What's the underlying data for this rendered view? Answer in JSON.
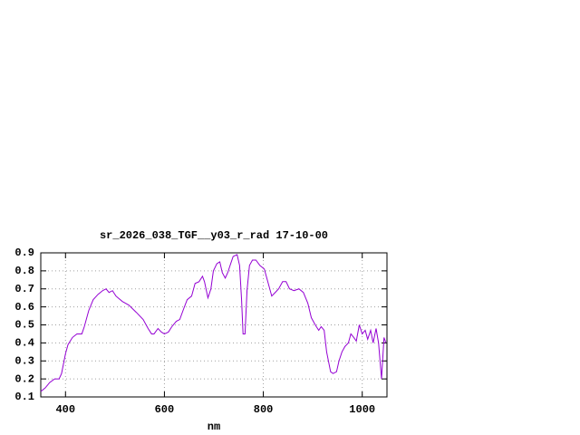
{
  "chart_data": {
    "type": "line",
    "title": "sr_2026_038_TGF__y03_r_rad 17-10-00",
    "x_label": "nm",
    "x": [
      350,
      359,
      368,
      378,
      387,
      392,
      400,
      405,
      414,
      423,
      433,
      438,
      447,
      456,
      466,
      475,
      482,
      488,
      495,
      502,
      515,
      528,
      543,
      557,
      567,
      574,
      579,
      587,
      594,
      600,
      608,
      615,
      624,
      631,
      639,
      646,
      655,
      662,
      670,
      677,
      681,
      688,
      694,
      699,
      706,
      712,
      717,
      723,
      728,
      734,
      739,
      747,
      752,
      756,
      759,
      763,
      767,
      772,
      778,
      785,
      793,
      802,
      809,
      817,
      824,
      831,
      839,
      846,
      853,
      862,
      872,
      881,
      890,
      897,
      905,
      912,
      917,
      923,
      928,
      936,
      941,
      948,
      953,
      959,
      965,
      972,
      977,
      983,
      988,
      994,
      1000,
      1006,
      1011,
      1017,
      1022,
      1028,
      1033,
      1039,
      1044,
      1048
    ],
    "series": [
      {
        "color": "#9400d3",
        "values": [
          0.13,
          0.15,
          0.18,
          0.2,
          0.2,
          0.23,
          0.34,
          0.39,
          0.43,
          0.45,
          0.45,
          0.49,
          0.58,
          0.64,
          0.67,
          0.69,
          0.7,
          0.68,
          0.69,
          0.66,
          0.63,
          0.61,
          0.57,
          0.53,
          0.48,
          0.45,
          0.45,
          0.48,
          0.46,
          0.45,
          0.46,
          0.49,
          0.52,
          0.53,
          0.59,
          0.64,
          0.66,
          0.73,
          0.74,
          0.77,
          0.74,
          0.65,
          0.7,
          0.8,
          0.84,
          0.85,
          0.79,
          0.76,
          0.79,
          0.84,
          0.88,
          0.89,
          0.83,
          0.64,
          0.45,
          0.45,
          0.69,
          0.83,
          0.86,
          0.86,
          0.83,
          0.81,
          0.74,
          0.66,
          0.68,
          0.7,
          0.74,
          0.74,
          0.7,
          0.69,
          0.7,
          0.68,
          0.62,
          0.54,
          0.5,
          0.47,
          0.49,
          0.47,
          0.35,
          0.24,
          0.23,
          0.24,
          0.3,
          0.35,
          0.38,
          0.4,
          0.45,
          0.43,
          0.41,
          0.5,
          0.45,
          0.47,
          0.42,
          0.47,
          0.4,
          0.48,
          0.4,
          0.2,
          0.43,
          0.4
        ]
      }
    ],
    "xlim": [
      350,
      1050
    ],
    "xticks": [
      400,
      600,
      800,
      1000
    ],
    "ylim": [
      0.1,
      0.9
    ],
    "yticks": [
      0.1,
      0.2,
      0.3,
      0.4,
      0.5,
      0.6,
      0.7,
      0.8,
      0.9
    ],
    "grid": true
  }
}
